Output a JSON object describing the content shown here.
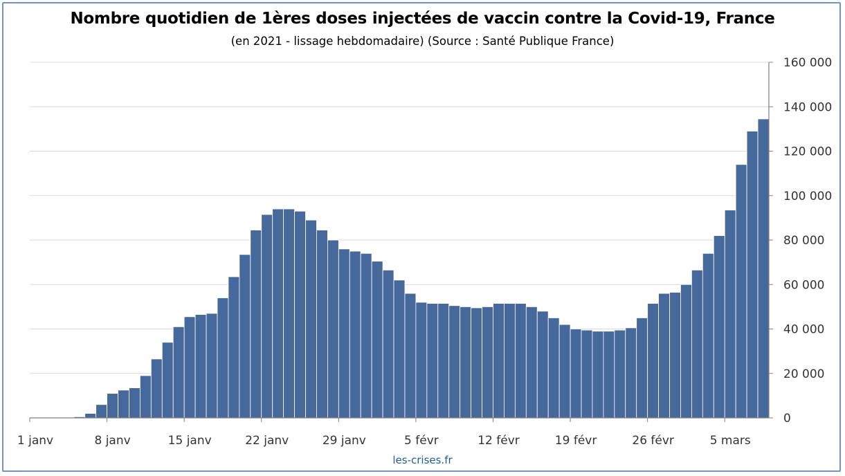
{
  "title": "Nombre quotidien de 1ères doses injectées de vaccin contre la Covid-19, France",
  "subtitle": "(en 2021 - lissage hebdomadaire) (Source : Santé Publique France)",
  "credit": "les-crises.fr",
  "colors": {
    "bar": "#46689a",
    "frame": "#6f93c6",
    "grid": "#d9d9d9",
    "axis": "#7f7f7f"
  },
  "chart_data": {
    "type": "bar",
    "ylim": [
      0,
      160000
    ],
    "y_ticks": [
      0,
      20000,
      40000,
      60000,
      80000,
      100000,
      120000,
      140000,
      160000
    ],
    "y_tick_labels": [
      "0",
      "20 000",
      "40 000",
      "60 000",
      "80 000",
      "100 000",
      "120 000",
      "140 000",
      "160 000"
    ],
    "y_axis_side": "right",
    "grid": true,
    "x_ticks": [
      {
        "label": "1 janv",
        "index": 0
      },
      {
        "label": "8 janv",
        "index": 7
      },
      {
        "label": "15 janv",
        "index": 14
      },
      {
        "label": "22 janv",
        "index": 21
      },
      {
        "label": "29 janv",
        "index": 28
      },
      {
        "label": "5 févr",
        "index": 35
      },
      {
        "label": "12 févr",
        "index": 42
      },
      {
        "label": "19 févr",
        "index": 49
      },
      {
        "label": "26 févr",
        "index": 56
      },
      {
        "label": "5 mars",
        "index": 63
      }
    ],
    "values": [
      0,
      0,
      0,
      0,
      500,
      2000,
      6000,
      11000,
      12500,
      13500,
      19000,
      26500,
      34000,
      41000,
      45500,
      46500,
      47000,
      54000,
      63500,
      73500,
      84500,
      91500,
      94000,
      94000,
      93000,
      89000,
      84500,
      80000,
      76000,
      75000,
      74000,
      70500,
      66500,
      62000,
      56000,
      52000,
      51500,
      51500,
      50500,
      50000,
      49500,
      50000,
      51500,
      51500,
      51500,
      50000,
      48000,
      45000,
      42000,
      40000,
      39500,
      39000,
      39000,
      39500,
      40500,
      45000,
      51500,
      56000,
      56500,
      60000,
      66500,
      74000,
      82000,
      93500,
      114000,
      129000,
      134500
    ]
  }
}
